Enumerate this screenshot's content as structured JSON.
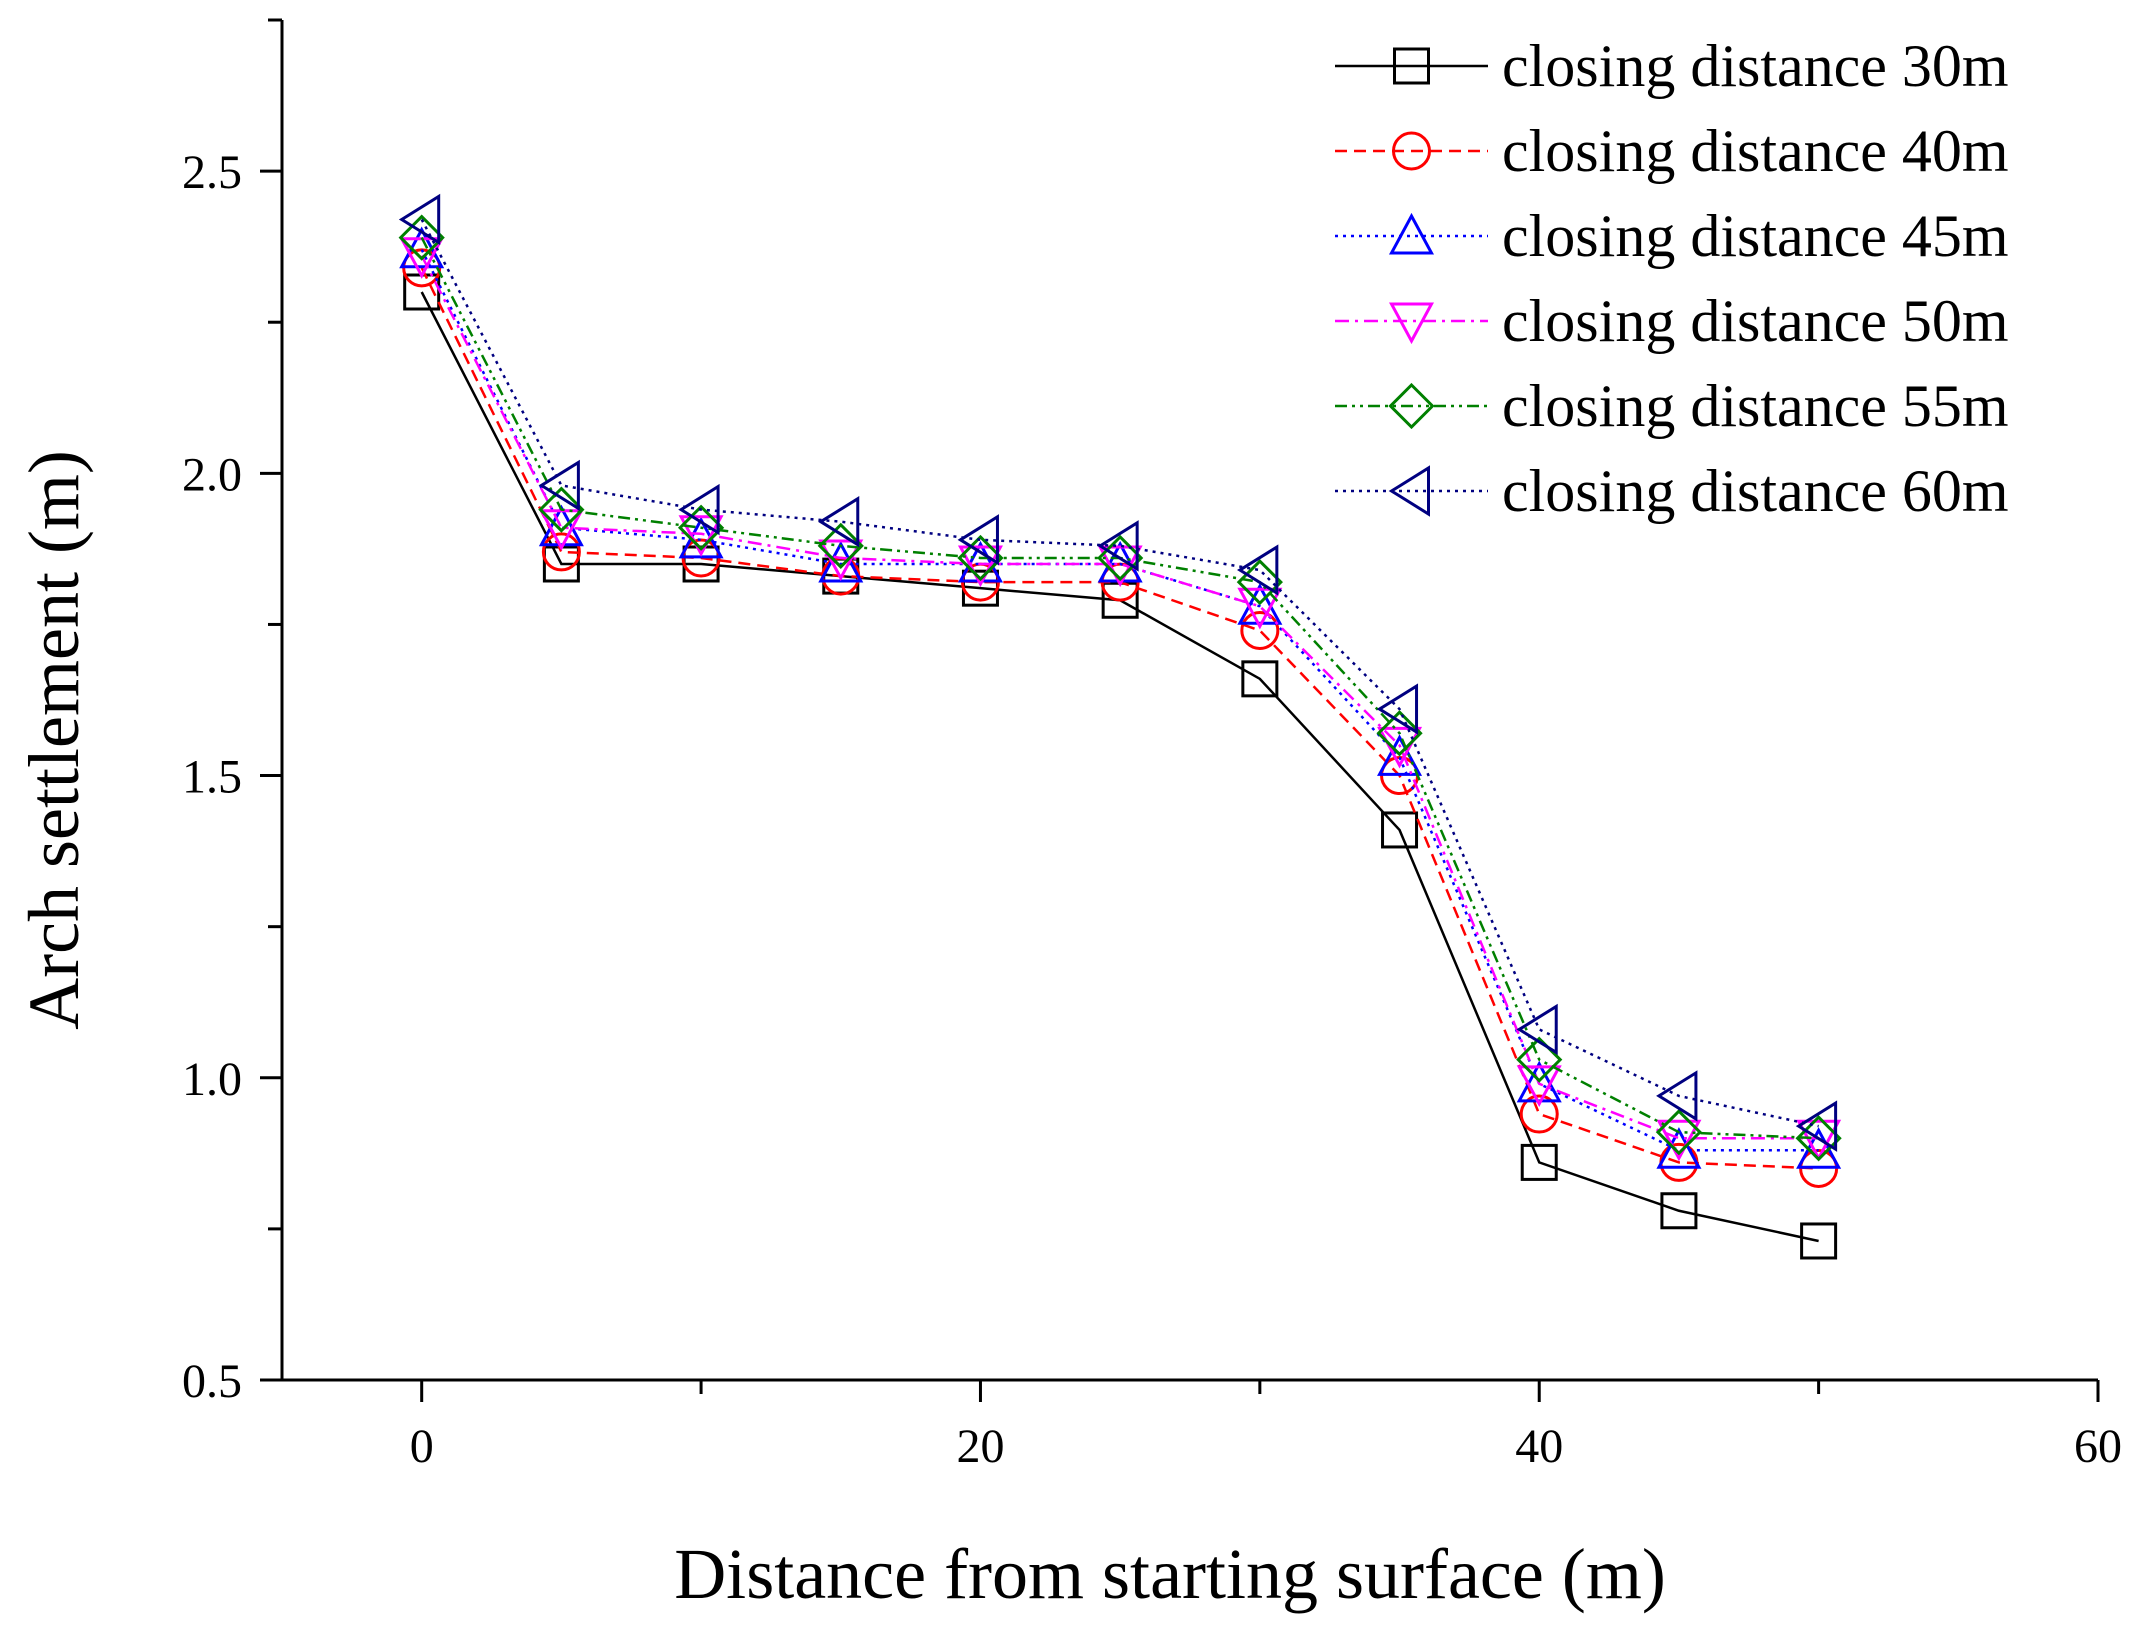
{
  "chart_data": {
    "type": "line",
    "title": "",
    "xlabel": "Distance from starting surface (m)",
    "ylabel": "Arch settlement (m)",
    "xlim": [
      -5,
      60
    ],
    "ylim": [
      0.5,
      2.75
    ],
    "xticks": [
      0,
      20,
      40,
      60
    ],
    "xminor_ticks": [
      10,
      30,
      50
    ],
    "yticks": [
      0.5,
      1.0,
      1.5,
      2.0,
      2.5
    ],
    "ytick_labels": [
      "0.5",
      "1.0",
      "1.5",
      "2.0",
      "2.5"
    ],
    "grid": false,
    "legend_position": "top-right",
    "x": [
      0,
      5,
      10,
      15,
      20,
      25,
      30,
      35,
      40,
      45,
      50
    ],
    "series": [
      {
        "name": "closing distance 30m",
        "color": "#000000",
        "marker": "square",
        "line_style": "solid",
        "values": [
          2.3,
          1.85,
          1.85,
          1.83,
          1.81,
          1.79,
          1.66,
          1.41,
          0.86,
          0.78,
          0.73
        ]
      },
      {
        "name": "closing distance 40m",
        "color": "#ff0000",
        "marker": "circle",
        "line_style": "dashed",
        "values": [
          2.34,
          1.87,
          1.86,
          1.83,
          1.82,
          1.82,
          1.74,
          1.5,
          0.94,
          0.86,
          0.85
        ]
      },
      {
        "name": "closing distance 45m",
        "color": "#0000ff",
        "marker": "triangle-up",
        "line_style": "dotted",
        "values": [
          2.37,
          1.91,
          1.89,
          1.85,
          1.85,
          1.85,
          1.78,
          1.53,
          0.99,
          0.88,
          0.88
        ]
      },
      {
        "name": "closing distance 50m",
        "color": "#ff00ff",
        "marker": "triangle-down",
        "line_style": "dash-dot",
        "values": [
          2.36,
          1.91,
          1.9,
          1.86,
          1.85,
          1.85,
          1.78,
          1.55,
          0.99,
          0.9,
          0.9
        ]
      },
      {
        "name": "closing distance 55m",
        "color": "#008000",
        "marker": "diamond",
        "line_style": "dash-dot-dot",
        "values": [
          2.39,
          1.94,
          1.91,
          1.88,
          1.86,
          1.86,
          1.82,
          1.57,
          1.03,
          0.91,
          0.9
        ]
      },
      {
        "name": "closing distance 60m",
        "color": "#000080",
        "marker": "triangle-left",
        "line_style": "dotted",
        "values": [
          2.42,
          1.98,
          1.94,
          1.92,
          1.89,
          1.88,
          1.84,
          1.61,
          1.08,
          0.97,
          0.92
        ]
      }
    ]
  }
}
